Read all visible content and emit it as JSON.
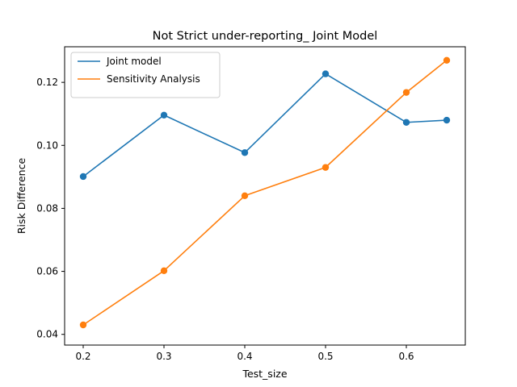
{
  "chart_data": {
    "type": "line",
    "title": "Not Strict under-reporting_ Joint Model",
    "xlabel": "Test_size",
    "ylabel": "Risk Difference",
    "x": [
      0.2,
      0.3,
      0.4,
      0.5,
      0.6,
      0.65
    ],
    "xlim": [
      0.177,
      0.673
    ],
    "ylim": [
      0.0366,
      0.1313
    ],
    "xticks": [
      0.2,
      0.3,
      0.4,
      0.5,
      0.6
    ],
    "xtick_labels": [
      "0.2",
      "0.3",
      "0.4",
      "0.5",
      "0.6"
    ],
    "yticks": [
      0.04,
      0.06,
      0.08,
      0.1,
      0.12
    ],
    "ytick_labels": [
      "0.04",
      "0.06",
      "0.08",
      "0.10",
      "0.12"
    ],
    "grid": false,
    "legend_position": "top-left",
    "series": [
      {
        "name": "Joint model",
        "color": "#1f77b4",
        "values": [
          0.0901,
          0.1096,
          0.0977,
          0.1227,
          0.1073,
          0.108
        ]
      },
      {
        "name": "Sensitivity Analysis",
        "color": "#ff7f0e",
        "values": [
          0.043,
          0.0602,
          0.084,
          0.093,
          0.1168,
          0.127
        ]
      }
    ]
  }
}
